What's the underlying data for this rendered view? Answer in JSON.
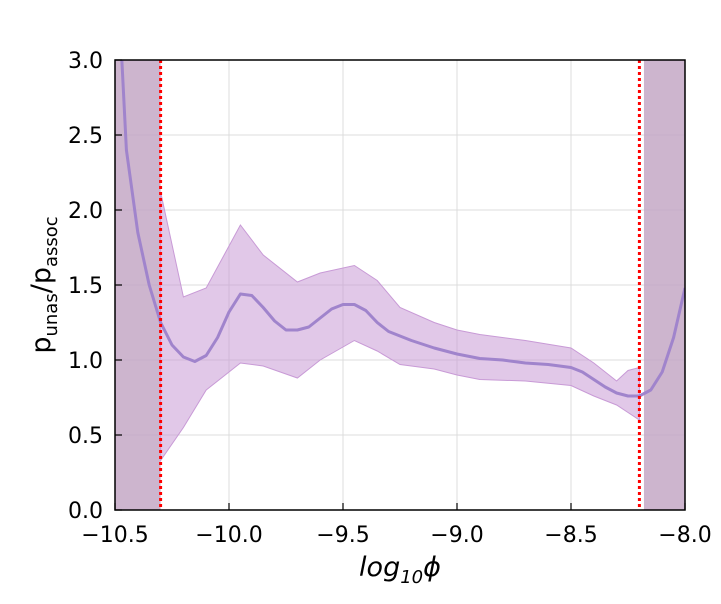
{
  "chart_data": {
    "type": "line",
    "xlabel": [
      {
        "text": "log",
        "sub": false
      },
      {
        "text": "10",
        "sub": true
      },
      {
        "text": "ϕ",
        "sub": false
      }
    ],
    "ylabel": [
      {
        "text": "p",
        "sub": false
      },
      {
        "text": "unas",
        "sub": true
      },
      {
        "text": "/p",
        "sub": false
      },
      {
        "text": "assoc",
        "sub": true
      }
    ],
    "xlim": [
      -10.5,
      -8.0
    ],
    "ylim": [
      0.0,
      3.0
    ],
    "xticks": [
      {
        "value": -10.5,
        "label": "−10.5"
      },
      {
        "value": -10.0,
        "label": "−10.0"
      },
      {
        "value": -9.5,
        "label": "−9.5"
      },
      {
        "value": -9.0,
        "label": "−9.0"
      },
      {
        "value": -8.5,
        "label": "−8.5"
      },
      {
        "value": -8.0,
        "label": "−8.0"
      }
    ],
    "yticks": [
      {
        "value": 0.0,
        "label": "0.0"
      },
      {
        "value": 0.5,
        "label": "0.5"
      },
      {
        "value": 1.0,
        "label": "1.0"
      },
      {
        "value": 1.5,
        "label": "1.5"
      },
      {
        "value": 2.0,
        "label": "2.0"
      },
      {
        "value": 2.5,
        "label": "2.5"
      },
      {
        "value": 3.0,
        "label": "3.0"
      }
    ],
    "grid": true,
    "series": [
      {
        "color": "#a084cc",
        "x": [
          -10.47,
          -10.45,
          -10.4,
          -10.35,
          -10.3,
          -10.25,
          -10.2,
          -10.15,
          -10.1,
          -10.05,
          -10.0,
          -9.95,
          -9.9,
          -9.85,
          -9.8,
          -9.75,
          -9.7,
          -9.65,
          -9.6,
          -9.55,
          -9.5,
          -9.45,
          -9.4,
          -9.35,
          -9.3,
          -9.2,
          -9.1,
          -9.0,
          -8.9,
          -8.8,
          -8.7,
          -8.6,
          -8.5,
          -8.45,
          -8.4,
          -8.35,
          -8.3,
          -8.25,
          -8.2,
          -8.15,
          -8.1,
          -8.05,
          -8.0
        ],
        "values": [
          3.0,
          2.4,
          1.85,
          1.5,
          1.25,
          1.1,
          1.02,
          0.99,
          1.03,
          1.15,
          1.32,
          1.44,
          1.43,
          1.35,
          1.26,
          1.2,
          1.2,
          1.22,
          1.28,
          1.34,
          1.37,
          1.37,
          1.33,
          1.25,
          1.19,
          1.13,
          1.08,
          1.04,
          1.01,
          1.0,
          0.98,
          0.97,
          0.95,
          0.92,
          0.87,
          0.82,
          0.78,
          0.76,
          0.76,
          0.8,
          0.92,
          1.15,
          1.48
        ]
      }
    ],
    "band": {
      "color": "#c89ad6",
      "x": [
        -10.3,
        -10.2,
        -10.1,
        -9.95,
        -9.85,
        -9.7,
        -9.6,
        -9.45,
        -9.35,
        -9.25,
        -9.1,
        -9.0,
        -8.9,
        -8.7,
        -8.5,
        -8.4,
        -8.3,
        -8.25,
        -8.2
      ],
      "upper": [
        2.12,
        1.42,
        1.48,
        1.9,
        1.7,
        1.52,
        1.58,
        1.63,
        1.53,
        1.35,
        1.25,
        1.2,
        1.17,
        1.13,
        1.08,
        0.98,
        0.86,
        0.93,
        0.95
      ],
      "lower": [
        0.33,
        0.55,
        0.8,
        0.98,
        0.96,
        0.88,
        1.0,
        1.13,
        1.06,
        0.97,
        0.94,
        0.9,
        0.87,
        0.86,
        0.83,
        0.76,
        0.7,
        0.65,
        0.6
      ]
    },
    "shaded_spans": {
      "color": "#c4a8c6",
      "spans": [
        [
          -10.5,
          -10.3
        ],
        [
          -8.18,
          -8.0
        ]
      ]
    },
    "vlines": {
      "color": "#ff0000",
      "x": [
        -10.3,
        -8.2
      ]
    }
  }
}
